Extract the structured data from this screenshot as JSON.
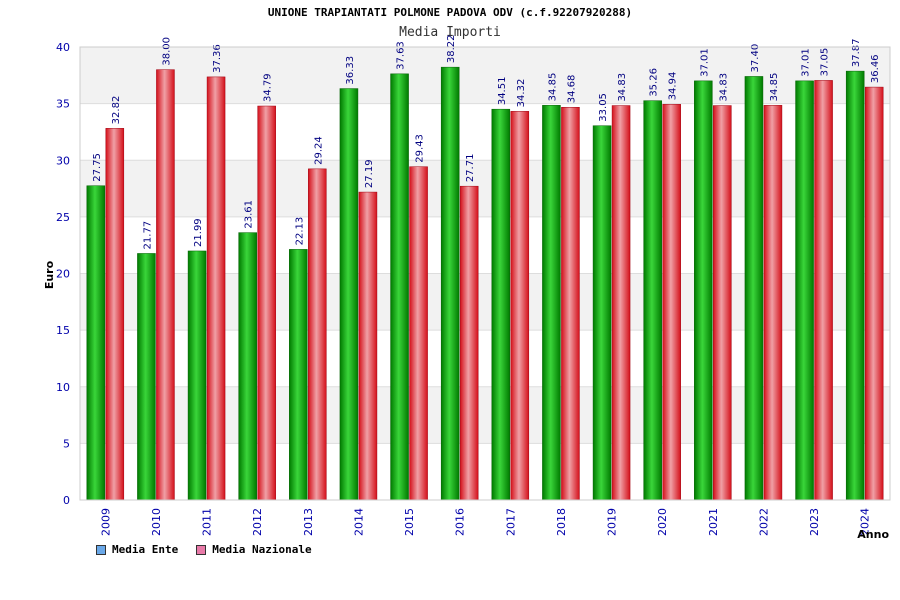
{
  "chart_data": {
    "type": "bar",
    "title": "UNIONE TRAPIANTATI POLMONE PADOVA ODV (c.f.92207920288)",
    "subtitle": "Media Importi",
    "xlabel": "Anno",
    "ylabel": "Euro",
    "ylim": [
      0,
      40
    ],
    "yticks": [
      "0",
      "5",
      "10",
      "15",
      "20",
      "25",
      "30",
      "35",
      "40"
    ],
    "grid": true,
    "legend_position": "bottom-left",
    "categories": [
      "2009",
      "2010",
      "2011",
      "2012",
      "2013",
      "2014",
      "2015",
      "2016",
      "2017",
      "2018",
      "2019",
      "2020",
      "2021",
      "2022",
      "2023",
      "2024"
    ],
    "series": [
      {
        "name": "Media Ente",
        "color": "#00b000",
        "legend_color": "#6aa8e8",
        "values": [
          27.75,
          21.77,
          21.99,
          23.61,
          22.13,
          36.33,
          37.63,
          38.22,
          34.51,
          34.85,
          33.05,
          35.26,
          37.01,
          37.4,
          37.01,
          37.87
        ],
        "labels": [
          "27.75",
          "21.77",
          "21.99",
          "23.61",
          "22.13",
          "36.33",
          "37.63",
          "38.22",
          "34.51",
          "34.85",
          "33.05",
          "35.26",
          "37.01",
          "37.40",
          "37.01",
          "37.87"
        ]
      },
      {
        "name": "Media Nazionale",
        "color": "#e8202a",
        "legend_color": "#e87aa8",
        "values": [
          32.82,
          38.0,
          37.36,
          34.79,
          29.24,
          27.19,
          29.43,
          27.71,
          34.32,
          34.68,
          34.83,
          34.94,
          34.83,
          34.85,
          37.05,
          36.46
        ],
        "labels": [
          "32.82",
          "38.00",
          "37.36",
          "34.79",
          "29.24",
          "27.19",
          "29.43",
          "27.71",
          "34.32",
          "34.68",
          "34.83",
          "34.94",
          "34.83",
          "34.85",
          "37.05",
          "36.46"
        ]
      }
    ]
  }
}
